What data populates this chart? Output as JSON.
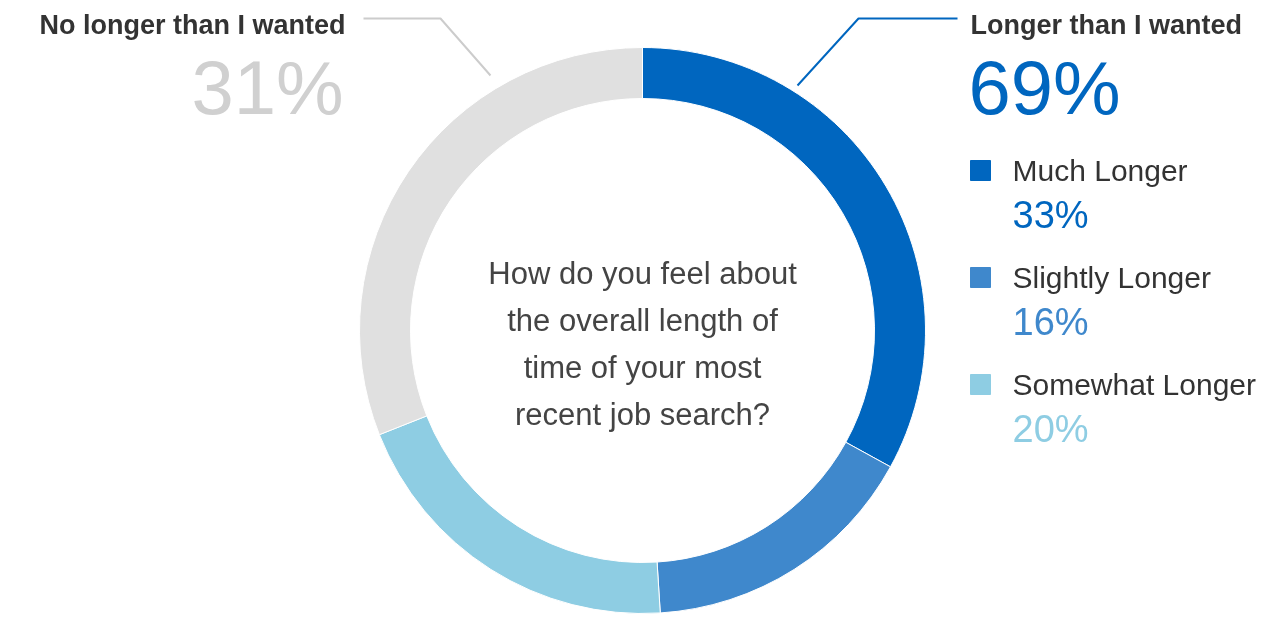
{
  "chart_data": {
    "type": "donut",
    "title": "How do you feel about the overall length of time of your most recent job search?",
    "categories": [
      "Much Longer",
      "Slightly Longer",
      "Somewhat Longer",
      "No longer than I wanted"
    ],
    "values": [
      33,
      16,
      20,
      31
    ],
    "colors": [
      "#0066bf",
      "#3f88cc",
      "#8ecde3",
      "#e0e0e0"
    ],
    "value_labels": [
      "33%",
      "16%",
      "20%",
      "31%"
    ],
    "annotations": [
      "Longer than I wanted",
      "69%"
    ],
    "legend": "right"
  }
}
